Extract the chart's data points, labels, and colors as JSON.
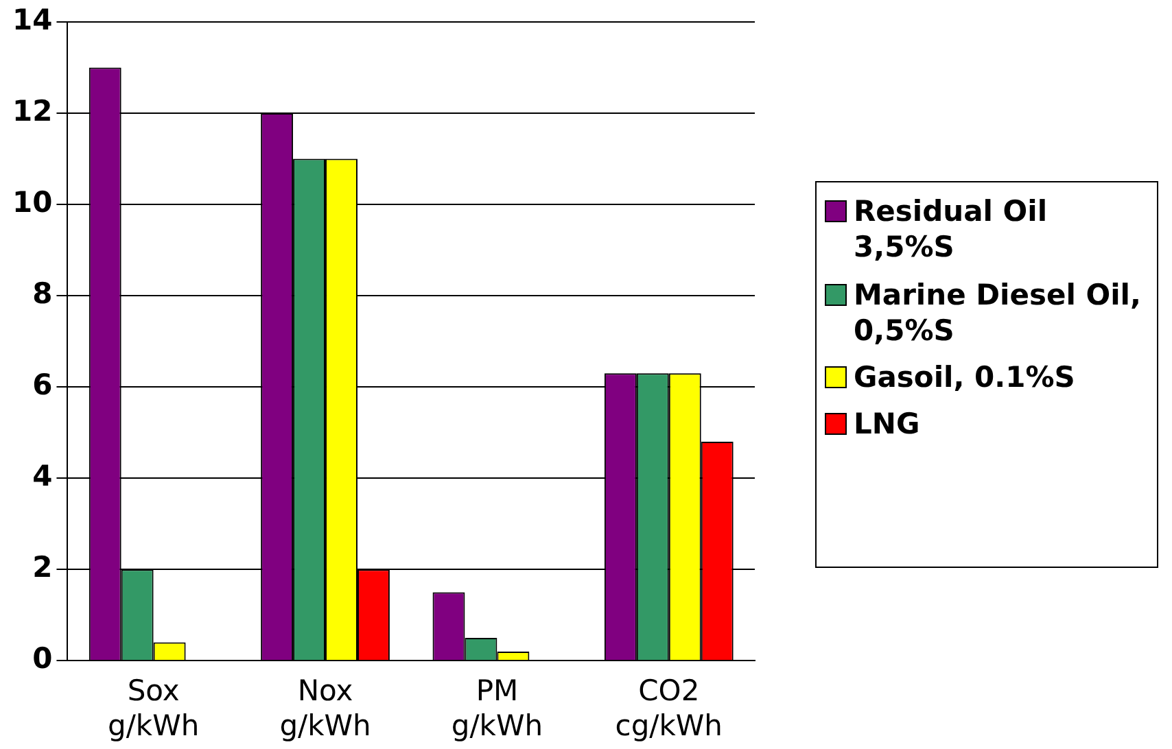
{
  "chart_data": {
    "type": "bar",
    "categories": [
      "Sox g/kWh",
      "Nox g/kWh",
      "PM g/kWh",
      "CO2 cg/kWh"
    ],
    "series": [
      {
        "name": "Residual Oil 3,5%S",
        "color": "#800080",
        "values": [
          13,
          12,
          1.5,
          6.3
        ]
      },
      {
        "name": "Marine Diesel Oil, 0,5%S",
        "color": "#339966",
        "values": [
          2,
          11,
          0.5,
          6.3
        ]
      },
      {
        "name": "Gasoil, 0.1%S",
        "color": "#ffff00",
        "values": [
          0.4,
          11,
          0.2,
          6.3
        ]
      },
      {
        "name": "LNG",
        "color": "#ff0000",
        "values": [
          0,
          2,
          0,
          4.8
        ]
      }
    ],
    "ylim": [
      0,
      14
    ],
    "yticks": [
      0,
      2,
      4,
      6,
      8,
      10,
      12,
      14
    ],
    "grid": "y",
    "legend": "right"
  }
}
